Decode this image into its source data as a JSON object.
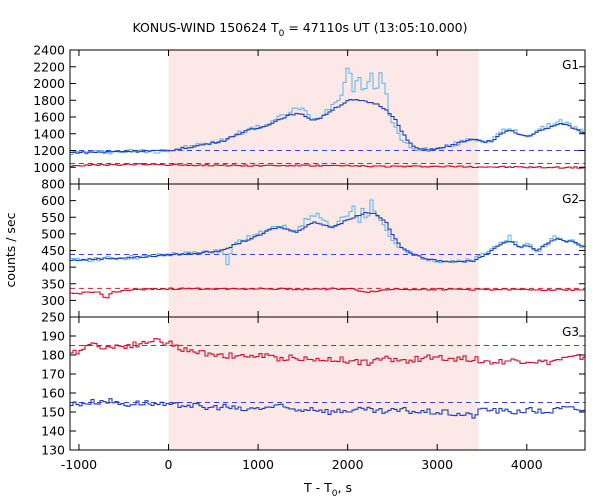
{
  "chart_data": {
    "type": "line",
    "title": "KONUS-WIND 150624 T₀ = 47110s UT (13:05:10.000)",
    "title_parts": {
      "prefix": "KONUS-WIND 150624 T",
      "subscript": "0",
      "suffix": " = 47110s UT (13:05:10.000)"
    },
    "xlabel": "T - T₀, s",
    "xlabel_parts": {
      "prefix": "T - T",
      "subscript": "0",
      "suffix": ", s"
    },
    "ylabel": "counts / sec",
    "xlim": [
      -1100,
      4650
    ],
    "x_ticks": [
      -1000,
      0,
      1000,
      2000,
      3000,
      4000
    ],
    "x_tick_labels": [
      "-1000",
      "0",
      "1000",
      "2000",
      "3000",
      "4000"
    ],
    "shaded_interval": [
      0,
      3460
    ],
    "colors": {
      "shade": "#fde8e8",
      "high_channel": "#56b4e9",
      "low_channel": "#1a3fb5",
      "mid_channel": "#c8102e",
      "dashed_blue": "#3344dd",
      "dashed_red": "#cc2233"
    },
    "panels": [
      {
        "label": "G1",
        "ylim": [
          800,
          2400
        ],
        "y_ticks": [
          800,
          1000,
          1200,
          1400,
          1600,
          1800,
          2000,
          2200,
          2400
        ],
        "y_tick_labels": [
          "800",
          "1000",
          "1200",
          "1400",
          "1600",
          "1800",
          "2000",
          "2200",
          "2400"
        ],
        "reference_levels": [
          {
            "series": "background-blue",
            "value": 1200
          },
          {
            "series": "background-red",
            "value": 1045
          }
        ],
        "series": [
          {
            "key": "fine",
            "role": "high_channel",
            "x": [
              -1100,
              -800,
              -500,
              -200,
              0,
              200,
              400,
              600,
              700,
              800,
              900,
              1000,
              1100,
              1200,
              1300,
              1400,
              1500,
              1600,
              1700,
              1800,
              1900,
              1950,
              2000,
              2050,
              2100,
              2150,
              2200,
              2250,
              2300,
              2350,
              2400,
              2450,
              2500,
              2600,
              2700,
              2800,
              3000,
              3200,
              3400,
              3500,
              3600,
              3700,
              3800,
              3900,
              4000,
              4100,
              4200,
              4300,
              4400,
              4500,
              4650
            ],
            "y": [
              1175,
              1180,
              1190,
              1195,
              1200,
              1240,
              1280,
              1320,
              1380,
              1420,
              1460,
              1480,
              1520,
              1580,
              1640,
              1700,
              1680,
              1560,
              1620,
              1740,
              1820,
              2050,
              2250,
              1880,
              2150,
              1900,
              1980,
              2150,
              1820,
              2120,
              1950,
              1650,
              1500,
              1300,
              1240,
              1210,
              1220,
              1280,
              1350,
              1300,
              1330,
              1420,
              1460,
              1400,
              1380,
              1430,
              1480,
              1540,
              1550,
              1480,
              1400
            ]
          },
          {
            "key": "binned",
            "role": "low_channel",
            "x": [
              -1100,
              -800,
              -500,
              -200,
              0,
              200,
              400,
              600,
              700,
              800,
              900,
              1000,
              1100,
              1200,
              1300,
              1400,
              1500,
              1600,
              1700,
              1800,
              1900,
              2000,
              2100,
              2200,
              2300,
              2400,
              2500,
              2600,
              2700,
              2800,
              3000,
              3200,
              3400,
              3500,
              3600,
              3700,
              3800,
              3900,
              4000,
              4100,
              4200,
              4300,
              4400,
              4500,
              4650
            ],
            "y": [
              1175,
              1180,
              1190,
              1195,
              1200,
              1235,
              1275,
              1315,
              1370,
              1410,
              1450,
              1470,
              1510,
              1560,
              1610,
              1640,
              1620,
              1560,
              1600,
              1680,
              1740,
              1800,
              1800,
              1780,
              1760,
              1700,
              1600,
              1400,
              1260,
              1210,
              1220,
              1280,
              1340,
              1300,
              1320,
              1400,
              1440,
              1390,
              1370,
              1420,
              1460,
              1500,
              1520,
              1470,
              1400
            ]
          },
          {
            "key": "mid",
            "role": "mid_channel",
            "x": [
              -1100,
              -800,
              -500,
              -200,
              0,
              500,
              1000,
              1500,
              2000,
              2500,
              3000,
              3500,
              4000,
              4650
            ],
            "y": [
              1020,
              1025,
              1030,
              1035,
              1030,
              1025,
              1020,
              1020,
              1015,
              1010,
              1010,
              1005,
              1000,
              995
            ]
          }
        ]
      },
      {
        "label": "G2",
        "ylim": [
          250,
          650
        ],
        "y_ticks": [
          250,
          300,
          350,
          400,
          450,
          500,
          550,
          600,
          650
        ],
        "y_tick_labels": [
          "250",
          "300",
          "350",
          "400",
          "450",
          "500",
          "550",
          "600",
          ""
        ],
        "reference_levels": [
          {
            "series": "background-blue",
            "value": 438
          },
          {
            "series": "background-red",
            "value": 336
          }
        ],
        "series": [
          {
            "key": "fine",
            "role": "high_channel",
            "x": [
              -1100,
              -800,
              -500,
              -200,
              0,
              200,
              400,
              600,
              650,
              700,
              800,
              900,
              1000,
              1100,
              1200,
              1300,
              1400,
              1500,
              1600,
              1700,
              1800,
              1900,
              2000,
              2050,
              2100,
              2150,
              2200,
              2250,
              2300,
              2350,
              2400,
              2500,
              2600,
              2700,
              2800,
              3000,
              3200,
              3400,
              3500,
              3600,
              3700,
              3800,
              3900,
              4000,
              4100,
              4200,
              4300,
              4400,
              4500,
              4650
            ],
            "y": [
              420,
              425,
              428,
              432,
              438,
              440,
              445,
              452,
              405,
              470,
              480,
              490,
              500,
              520,
              530,
              520,
              500,
              540,
              560,
              550,
              510,
              540,
              560,
              590,
              520,
              580,
              540,
              600,
              560,
              540,
              520,
              470,
              450,
              440,
              430,
              420,
              415,
              420,
              440,
              455,
              480,
              490,
              460,
              470,
              445,
              470,
              490,
              480,
              475,
              460
            ]
          },
          {
            "key": "binned",
            "role": "low_channel",
            "x": [
              -1100,
              -800,
              -500,
              -200,
              0,
              200,
              400,
              600,
              700,
              800,
              900,
              1000,
              1100,
              1200,
              1300,
              1400,
              1500,
              1600,
              1700,
              1800,
              1900,
              2000,
              2100,
              2200,
              2300,
              2400,
              2500,
              2600,
              2700,
              2800,
              3000,
              3200,
              3400,
              3500,
              3600,
              3700,
              3800,
              3900,
              4000,
              4100,
              4200,
              4300,
              4400,
              4500,
              4650
            ],
            "y": [
              420,
              425,
              428,
              432,
              438,
              440,
              445,
              450,
              465,
              475,
              485,
              495,
              510,
              520,
              515,
              505,
              520,
              535,
              530,
              520,
              530,
              545,
              555,
              565,
              560,
              540,
              490,
              455,
              440,
              430,
              420,
              415,
              420,
              435,
              450,
              470,
              480,
              460,
              465,
              450,
              470,
              485,
              480,
              475,
              460
            ]
          },
          {
            "key": "mid",
            "role": "mid_channel",
            "x": [
              -1100,
              -800,
              -700,
              -650,
              -500,
              -200,
              0,
              500,
              1000,
              1500,
              2000,
              2200,
              2500,
              3000,
              3500,
              4000,
              4650
            ],
            "y": [
              320,
              325,
              305,
              325,
              330,
              333,
              335,
              335,
              335,
              334,
              335,
              325,
              334,
              333,
              333,
              332,
              332
            ]
          }
        ]
      },
      {
        "label": "G3",
        "ylim": [
          130,
          200
        ],
        "y_ticks": [
          130,
          140,
          150,
          160,
          170,
          180,
          190
        ],
        "y_tick_labels": [
          "130",
          "140",
          "150",
          "160",
          "170",
          "180",
          "190"
        ],
        "reference_levels": [
          {
            "series": "background-red",
            "value": 185
          },
          {
            "series": "background-blue",
            "value": 155
          }
        ],
        "series": [
          {
            "key": "mid",
            "role": "mid_channel",
            "x": [
              -1100,
              -900,
              -700,
              -500,
              -300,
              -200,
              0,
              200,
              400,
              600,
              800,
              1000,
              1200,
              1400,
              1600,
              1800,
              2000,
              2200,
              2400,
              2600,
              2800,
              3000,
              3200,
              3400,
              3600,
              3800,
              4000,
              4200,
              4400,
              4650
            ],
            "y": [
              180,
              186,
              184,
              185,
              186,
              188,
              186,
              182,
              181,
              180,
              179,
              180,
              178,
              179,
              177,
              178,
              177,
              176,
              178,
              177,
              178,
              179,
              178,
              178,
              176,
              177,
              177,
              176,
              178,
              179
            ]
          },
          {
            "key": "low",
            "role": "low_channel",
            "x": [
              -1100,
              -900,
              -700,
              -500,
              -300,
              0,
              200,
              400,
              600,
              800,
              1000,
              1200,
              1400,
              1600,
              1800,
              2000,
              2200,
              2400,
              2600,
              2800,
              3000,
              3200,
              3400,
              3500,
              3600,
              3800,
              4000,
              4200,
              4400,
              4650
            ],
            "y": [
              154,
              155,
              156,
              154,
              155,
              153,
              154,
              152,
              153,
              151,
              152,
              153,
              151,
              152,
              150,
              151,
              151,
              150,
              151,
              150,
              150,
              149,
              148,
              152,
              151,
              150,
              151,
              150,
              152,
              151
            ]
          }
        ]
      }
    ]
  }
}
